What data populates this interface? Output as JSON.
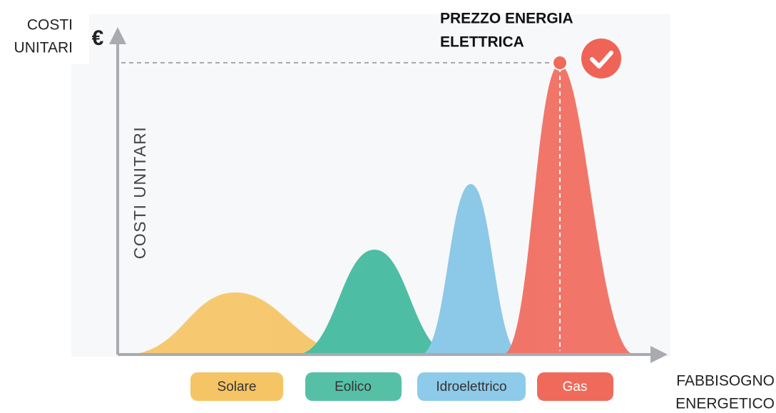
{
  "y_axis_label": [
    "COSTI",
    "UNITARI"
  ],
  "currency_symbol": "€",
  "inner_label": "COSTI UNITARI",
  "price_label": [
    "PREZZO ENERGIA",
    "ELETTRICA"
  ],
  "x_axis_label": [
    "FABBISOGNO",
    "ENERGETICO"
  ],
  "legend": [
    "Solare",
    "Eolico",
    "Idroelettrico",
    "Gas"
  ]
}
